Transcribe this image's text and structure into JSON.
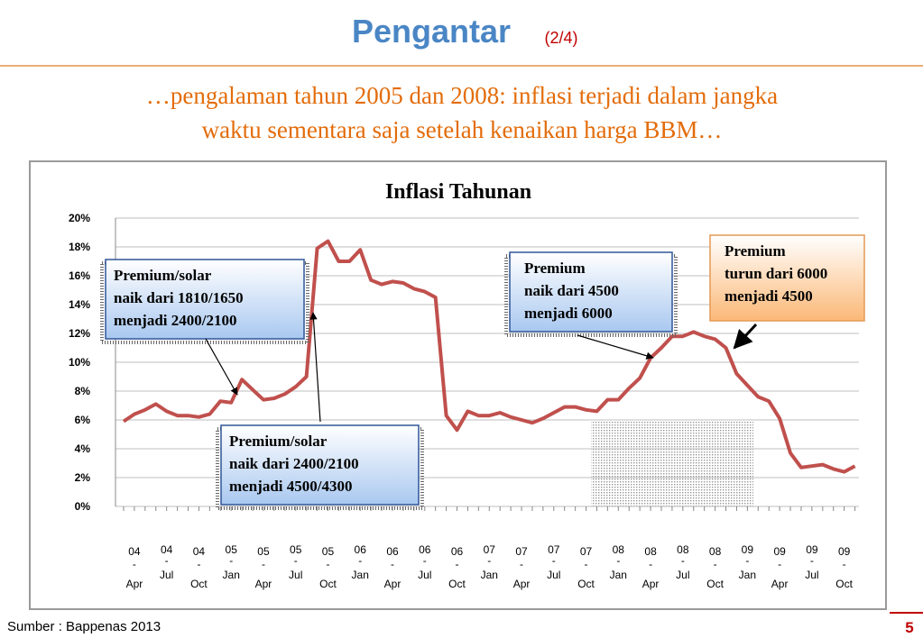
{
  "slide": {
    "title": "Pengantar",
    "part": "(2/4)",
    "subtitle": [
      "…pengalaman tahun 2005 dan 2008: inflasi terjadi dalam jangka",
      "waktu sementara saja setelah kenaikan harga BBM…"
    ],
    "source": "Sumber : Bappenas 2013",
    "page": "5"
  },
  "chart_data": {
    "type": "line",
    "title": "Inflasi Tahunan",
    "categories": [
      null,
      "04-Apr",
      null,
      null,
      "04-Jul",
      null,
      null,
      "04-Oct",
      null,
      null,
      "05-Jan",
      null,
      null,
      "05-Apr",
      null,
      null,
      "05-Jul",
      null,
      null,
      "05-Oct",
      null,
      null,
      "06-Jan",
      null,
      null,
      "06-Apr",
      null,
      null,
      "06-Jul",
      null,
      null,
      "06-Oct",
      null,
      null,
      "07-Jan",
      null,
      null,
      "07-Apr",
      null,
      null,
      "07-Jul",
      null,
      null,
      "07-Oct",
      null,
      null,
      "08-Jan",
      null,
      null,
      "08-Apr",
      null,
      null,
      "08-Jul",
      null,
      null,
      "08-Oct",
      null,
      null,
      "09-Jan",
      null,
      null,
      "09-Apr",
      null,
      null,
      "09-Jul",
      null,
      null,
      "09-Oct",
      null
    ],
    "series": [
      {
        "name": "Inflasi",
        "color": "#c0504d",
        "values": [
          5.9,
          6.4,
          6.7,
          7.1,
          6.6,
          6.3,
          6.3,
          6.2,
          6.4,
          7.3,
          7.2,
          8.8,
          8.1,
          7.4,
          7.5,
          7.8,
          8.3,
          9.0,
          17.9,
          18.4,
          17.0,
          17.0,
          17.8,
          15.7,
          15.4,
          15.6,
          15.5,
          15.1,
          14.9,
          14.5,
          6.3,
          5.3,
          6.6,
          6.3,
          6.3,
          6.5,
          6.2,
          6.0,
          5.8,
          6.1,
          6.5,
          6.9,
          6.9,
          6.7,
          6.6,
          7.4,
          7.4,
          8.2,
          8.9,
          10.3,
          11.0,
          11.8,
          11.8,
          12.1,
          11.8,
          11.6,
          11.0,
          9.2,
          8.4,
          7.6,
          7.3,
          6.1,
          3.7,
          2.7,
          2.8,
          2.9,
          2.6,
          2.4,
          2.8
        ]
      }
    ],
    "ylim": [
      0,
      20
    ],
    "yticks": [
      {
        "value": 0,
        "label": "0%"
      },
      {
        "value": 2,
        "label": "2%"
      },
      {
        "value": 4,
        "label": "4%"
      },
      {
        "value": 6,
        "label": "6%"
      },
      {
        "value": 8,
        "label": "8%"
      },
      {
        "value": 10,
        "label": "10%"
      },
      {
        "value": 12,
        "label": "12%"
      },
      {
        "value": 14,
        "label": "14%"
      },
      {
        "value": 16,
        "label": "16%"
      },
      {
        "value": 18,
        "label": "18%"
      },
      {
        "value": 20,
        "label": "20%"
      }
    ],
    "grid": true,
    "annotations": [
      {
        "lines": [
          "Premium/solar",
          "naik dari 1810/1650",
          "menjadi 2400/2100"
        ]
      },
      {
        "lines": [
          "Premium/solar",
          "naik dari 2400/2100",
          "menjadi 4500/4300"
        ]
      },
      {
        "lines": [
          "Premium",
          "naik dari 4500",
          "menjadi 6000"
        ]
      },
      {
        "lines": [
          "Premium",
          "turun dari 6000",
          "menjadi 4500"
        ]
      }
    ]
  }
}
